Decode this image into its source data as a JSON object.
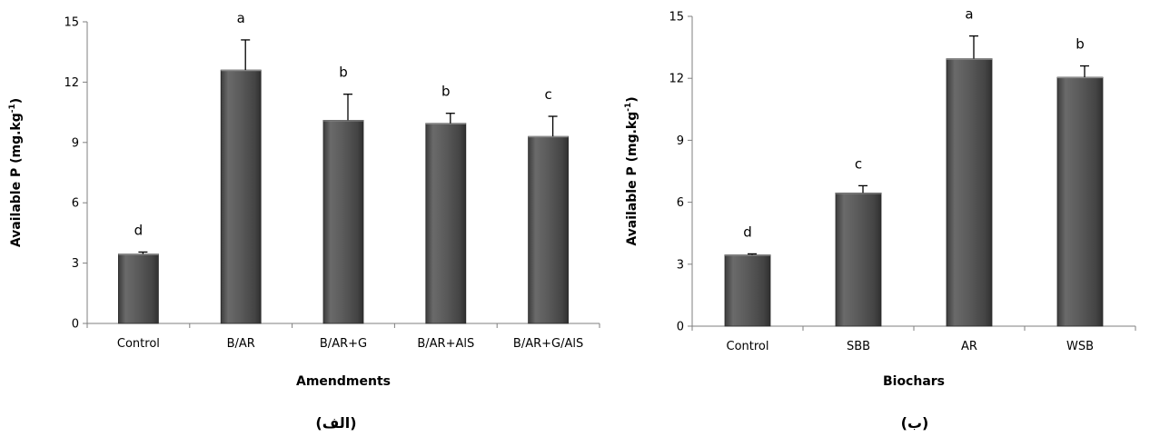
{
  "chart_data": [
    {
      "type": "bar",
      "categories": [
        "Control",
        "B/AR",
        "B/AR+G",
        "B/AR+AlS",
        "B/AR+G/AlS"
      ],
      "values": [
        3.45,
        12.6,
        10.1,
        9.95,
        9.3
      ],
      "errors": [
        0.1,
        1.5,
        1.3,
        0.5,
        1.0
      ],
      "letters": [
        "d",
        "a",
        "b",
        "b",
        "c"
      ],
      "xlabel": "Amendments",
      "ylabel_main": "Available P (mg.kg",
      "ylabel_sup": "-1",
      "ylabel_end": ")",
      "ylim": [
        0,
        15
      ],
      "yticks": [
        0,
        3,
        6,
        9,
        12,
        15
      ],
      "caption": "(الف)",
      "bar_color": "#555555",
      "grid": false
    },
    {
      "type": "bar",
      "categories": [
        "Control",
        "SBB",
        "AR",
        "WSB"
      ],
      "values": [
        3.45,
        6.45,
        12.95,
        12.05
      ],
      "errors": [
        0.05,
        0.35,
        1.1,
        0.55
      ],
      "letters": [
        "d",
        "c",
        "a",
        "b"
      ],
      "xlabel": "Biochars",
      "ylabel_main": "Available P (mg.kg",
      "ylabel_sup": "-1",
      "ylabel_end": ")",
      "ylim": [
        0,
        15
      ],
      "yticks": [
        0,
        3,
        6,
        9,
        12,
        15
      ],
      "caption": "(ب)",
      "bar_color": "#555555",
      "grid": false
    }
  ]
}
